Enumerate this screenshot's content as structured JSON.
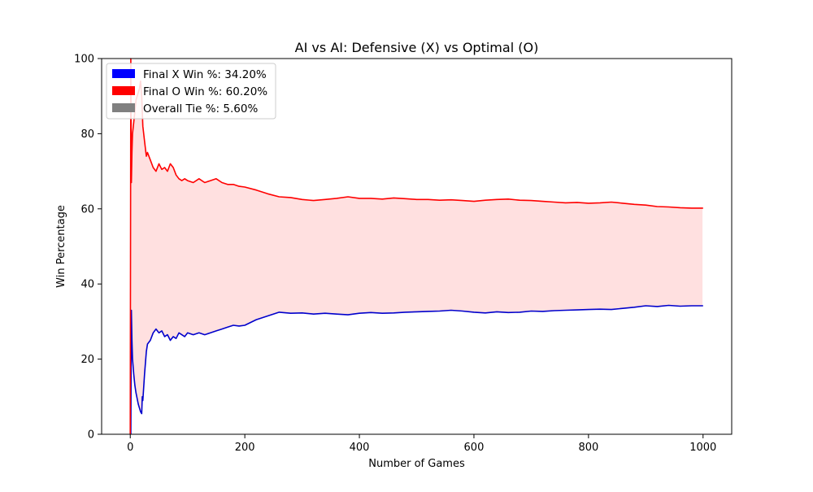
{
  "chart_data": {
    "type": "line",
    "title": "AI vs AI: Defensive (X) vs Optimal (O)",
    "xlabel": "Number of Games",
    "ylabel": "Win Percentage",
    "xlim": [
      -50,
      1050
    ],
    "ylim": [
      0,
      100
    ],
    "xticks": [
      0,
      200,
      400,
      600,
      800,
      1000
    ],
    "yticks": [
      0,
      20,
      40,
      60,
      80,
      100
    ],
    "legend_position": "upper-left",
    "legend": [
      {
        "label": "Final X Win %: 34.20%",
        "color": "#0000ff"
      },
      {
        "label": "Final O Win %: 60.20%",
        "color": "#ff0000"
      },
      {
        "label": "Overall Tie %: 5.60%",
        "color": "#808080"
      }
    ],
    "fill_between": {
      "color": "#ffe0e0",
      "between": [
        "X Win %",
        "O Win %"
      ]
    },
    "series": [
      {
        "color": "#0000cc",
        "x": [
          1,
          2,
          3,
          4,
          6,
          8,
          10,
          12,
          14,
          16,
          18,
          20,
          21,
          22,
          25,
          28,
          30,
          35,
          40,
          45,
          50,
          55,
          60,
          65,
          70,
          75,
          80,
          85,
          90,
          95,
          100,
          110,
          120,
          130,
          140,
          150,
          160,
          170,
          180,
          190,
          200,
          220,
          240,
          260,
          280,
          300,
          320,
          340,
          360,
          380,
          400,
          420,
          440,
          460,
          480,
          500,
          520,
          540,
          560,
          580,
          600,
          620,
          640,
          660,
          680,
          700,
          720,
          740,
          760,
          780,
          800,
          820,
          840,
          860,
          880,
          900,
          920,
          940,
          960,
          980,
          1000
        ],
        "values": [
          0,
          33,
          25,
          20,
          16,
          13,
          11,
          9.5,
          8,
          7,
          6,
          5.5,
          10,
          9,
          16,
          22,
          24,
          25,
          27,
          28,
          27,
          27.5,
          26,
          26.5,
          25,
          26,
          25.5,
          27,
          26.5,
          26,
          27,
          26.5,
          27,
          26.5,
          27,
          27.5,
          28,
          28.5,
          29,
          28.8,
          29,
          30.5,
          31.5,
          32.5,
          32.2,
          32.3,
          32,
          32.2,
          32,
          31.8,
          32.2,
          32.4,
          32.2,
          32.3,
          32.5,
          32.6,
          32.7,
          32.8,
          33,
          32.8,
          32.5,
          32.3,
          32.6,
          32.4,
          32.5,
          32.8,
          32.7,
          32.9,
          33,
          33.1,
          33.2,
          33.3,
          33.2,
          33.5,
          33.8,
          34.2,
          34,
          34.3,
          34.1,
          34.2,
          34.2
        ]
      },
      {
        "color": "#ff0000",
        "x": [
          0,
          1,
          2,
          3,
          4,
          6,
          8,
          10,
          12,
          14,
          16,
          18,
          20,
          22,
          25,
          28,
          30,
          35,
          40,
          45,
          50,
          55,
          60,
          65,
          70,
          75,
          80,
          85,
          90,
          95,
          100,
          110,
          120,
          130,
          140,
          150,
          160,
          170,
          180,
          190,
          200,
          220,
          240,
          260,
          280,
          300,
          320,
          340,
          360,
          380,
          400,
          420,
          440,
          460,
          480,
          500,
          520,
          540,
          560,
          580,
          600,
          620,
          640,
          660,
          680,
          700,
          720,
          740,
          760,
          780,
          800,
          820,
          840,
          860,
          880,
          900,
          920,
          940,
          960,
          980,
          1000
        ],
        "values": [
          0,
          100,
          67,
          75,
          80,
          83,
          86,
          89,
          90,
          91,
          92,
          94,
          90,
          82,
          78,
          74,
          75,
          73,
          71,
          70,
          72,
          70.5,
          71,
          70,
          72,
          71,
          69,
          68,
          67.5,
          68,
          67.5,
          67,
          68,
          67,
          67.5,
          68,
          67,
          66.5,
          66.5,
          66,
          65.8,
          65,
          64,
          63.2,
          63,
          62.5,
          62.2,
          62.5,
          62.8,
          63.2,
          62.8,
          62.8,
          62.6,
          62.9,
          62.7,
          62.5,
          62.5,
          62.3,
          62.4,
          62.2,
          62,
          62.3,
          62.5,
          62.6,
          62.3,
          62.2,
          62,
          61.8,
          61.6,
          61.7,
          61.5,
          61.6,
          61.8,
          61.5,
          61.2,
          61,
          60.6,
          60.5,
          60.3,
          60.2,
          60.2
        ]
      }
    ]
  }
}
